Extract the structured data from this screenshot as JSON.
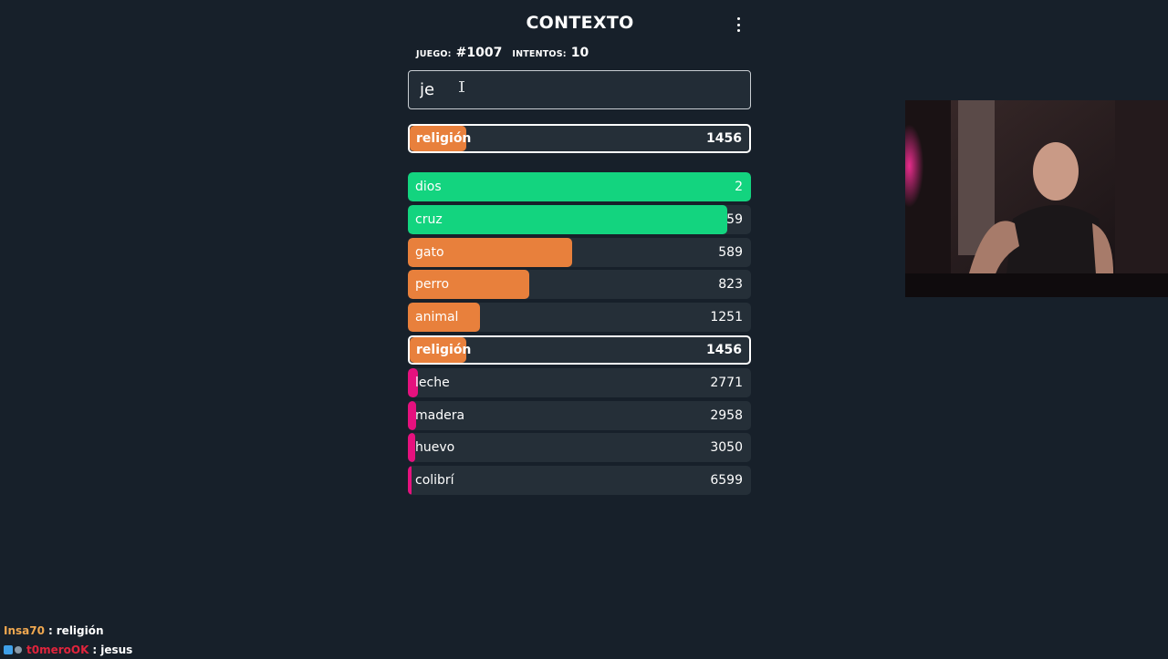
{
  "header": {
    "title": "CONTEXTO"
  },
  "stats": {
    "game_label": "JUEGO:",
    "game_value": "#1007",
    "attempts_label": "INTENTOS:",
    "attempts_value": "10"
  },
  "input": {
    "value": "je"
  },
  "last_guess": {
    "word": "religión",
    "distance": "1456",
    "fill_fraction": 0.165,
    "color": "#e8803c"
  },
  "guesses": [
    {
      "word": "dios",
      "distance": "2",
      "fill_fraction": 1.0,
      "color": "#13d47f",
      "highlight": false
    },
    {
      "word": "cruz",
      "distance": "59",
      "fill_fraction": 0.93,
      "color": "#13d47f",
      "highlight": false
    },
    {
      "word": "gato",
      "distance": "589",
      "fill_fraction": 0.48,
      "color": "#e8803c",
      "highlight": false
    },
    {
      "word": "perro",
      "distance": "823",
      "fill_fraction": 0.355,
      "color": "#e8803c",
      "highlight": false
    },
    {
      "word": "animal",
      "distance": "1251",
      "fill_fraction": 0.21,
      "color": "#e8803c",
      "highlight": false
    },
    {
      "word": "religión",
      "distance": "1456",
      "fill_fraction": 0.165,
      "color": "#e8803c",
      "highlight": true
    },
    {
      "word": "leche",
      "distance": "2771",
      "fill_fraction": 0.03,
      "color": "#e5117e",
      "highlight": false
    },
    {
      "word": "madera",
      "distance": "2958",
      "fill_fraction": 0.025,
      "color": "#e5117e",
      "highlight": false
    },
    {
      "word": "huevo",
      "distance": "3050",
      "fill_fraction": 0.022,
      "color": "#e5117e",
      "highlight": false
    },
    {
      "word": "colibrí",
      "distance": "6599",
      "fill_fraction": 0.01,
      "color": "#e5117e",
      "highlight": false
    }
  ],
  "chat": [
    {
      "user": "Insa70",
      "separator": ":",
      "message": "religión",
      "user_color": "#f0a850"
    },
    {
      "user": "t0meroOK",
      "separator": ":",
      "message": "jesus",
      "user_color": "#e0243c"
    }
  ]
}
